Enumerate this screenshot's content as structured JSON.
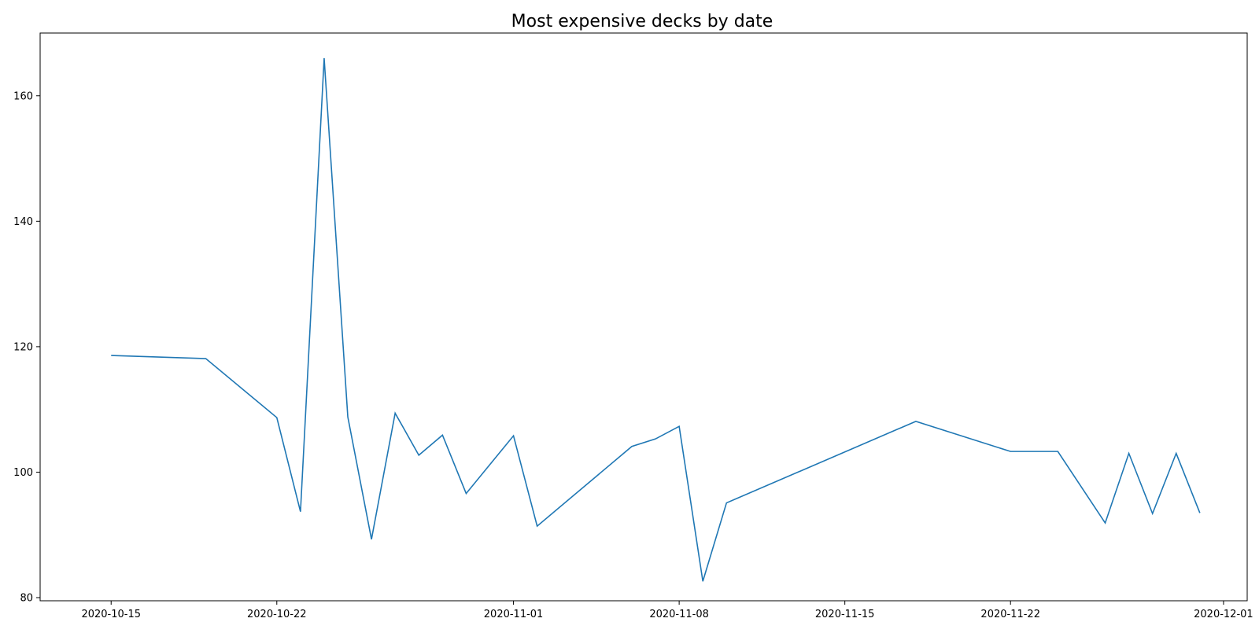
{
  "chart_data": {
    "type": "line",
    "title": "Most expensive decks by date",
    "xlabel": "",
    "ylabel": "",
    "xlim": [
      "2020-10-12",
      "2020-12-02"
    ],
    "ylim": [
      79.5,
      170
    ],
    "x_ticks": [
      "2020-10-15",
      "2020-10-22",
      "2020-11-01",
      "2020-11-08",
      "2020-11-15",
      "2020-11-22",
      "2020-12-01"
    ],
    "y_ticks": [
      80,
      100,
      120,
      140,
      160
    ],
    "grid": false,
    "legend": false,
    "series": [
      {
        "color": "#1f77b4",
        "points": [
          {
            "x": "2020-10-15",
            "y": 118.6
          },
          {
            "x": "2020-10-19",
            "y": 118.1
          },
          {
            "x": "2020-10-22",
            "y": 108.7
          },
          {
            "x": "2020-10-23",
            "y": 93.7
          },
          {
            "x": "2020-10-24",
            "y": 166.0
          },
          {
            "x": "2020-10-25",
            "y": 108.8
          },
          {
            "x": "2020-10-26",
            "y": 89.3
          },
          {
            "x": "2020-10-27",
            "y": 109.4
          },
          {
            "x": "2020-10-28",
            "y": 102.7
          },
          {
            "x": "2020-10-29",
            "y": 105.9
          },
          {
            "x": "2020-10-30",
            "y": 96.6
          },
          {
            "x": "2020-11-01",
            "y": 105.8
          },
          {
            "x": "2020-11-02",
            "y": 91.4
          },
          {
            "x": "2020-11-06",
            "y": 104.1
          },
          {
            "x": "2020-11-07",
            "y": 105.3
          },
          {
            "x": "2020-11-08",
            "y": 107.3
          },
          {
            "x": "2020-11-09",
            "y": 82.6
          },
          {
            "x": "2020-11-10",
            "y": 95.1
          },
          {
            "x": "2020-11-18",
            "y": 108.1
          },
          {
            "x": "2020-11-22",
            "y": 103.3
          },
          {
            "x": "2020-11-24",
            "y": 103.3
          },
          {
            "x": "2020-11-26",
            "y": 91.9
          },
          {
            "x": "2020-11-27",
            "y": 103.0
          },
          {
            "x": "2020-11-28",
            "y": 93.4
          },
          {
            "x": "2020-11-29",
            "y": 103.0
          },
          {
            "x": "2020-11-30",
            "y": 93.5
          }
        ]
      }
    ]
  }
}
